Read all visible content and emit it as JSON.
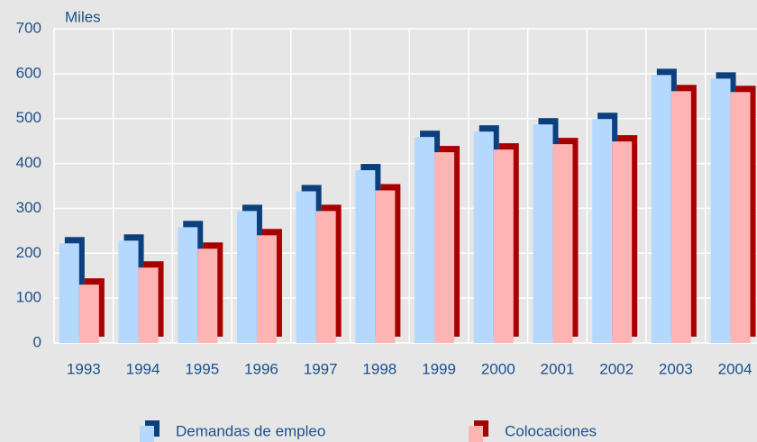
{
  "chart_data": {
    "type": "bar",
    "y_axis_label": "Miles",
    "categories": [
      "1993",
      "1994",
      "1995",
      "1996",
      "1997",
      "1998",
      "1999",
      "2000",
      "2001",
      "2002",
      "2003",
      "2004"
    ],
    "series": [
      {
        "name": "Demandas de empleo",
        "color": "#b5d8ff",
        "shadow_color": "#0b3f7e",
        "values": [
          222,
          228,
          258,
          294,
          338,
          385,
          459,
          471,
          487,
          499,
          597,
          589
        ]
      },
      {
        "name": "Colocaciones",
        "color": "#ffb4b4",
        "shadow_color": "#a80000",
        "values": [
          130,
          168,
          210,
          240,
          294,
          340,
          425,
          431,
          443,
          449,
          561,
          559
        ]
      }
    ],
    "ylim": [
      0,
      700
    ],
    "yticks": [
      0,
      100,
      200,
      300,
      400,
      500,
      600,
      700
    ],
    "grid": true,
    "legend": "bottom"
  }
}
